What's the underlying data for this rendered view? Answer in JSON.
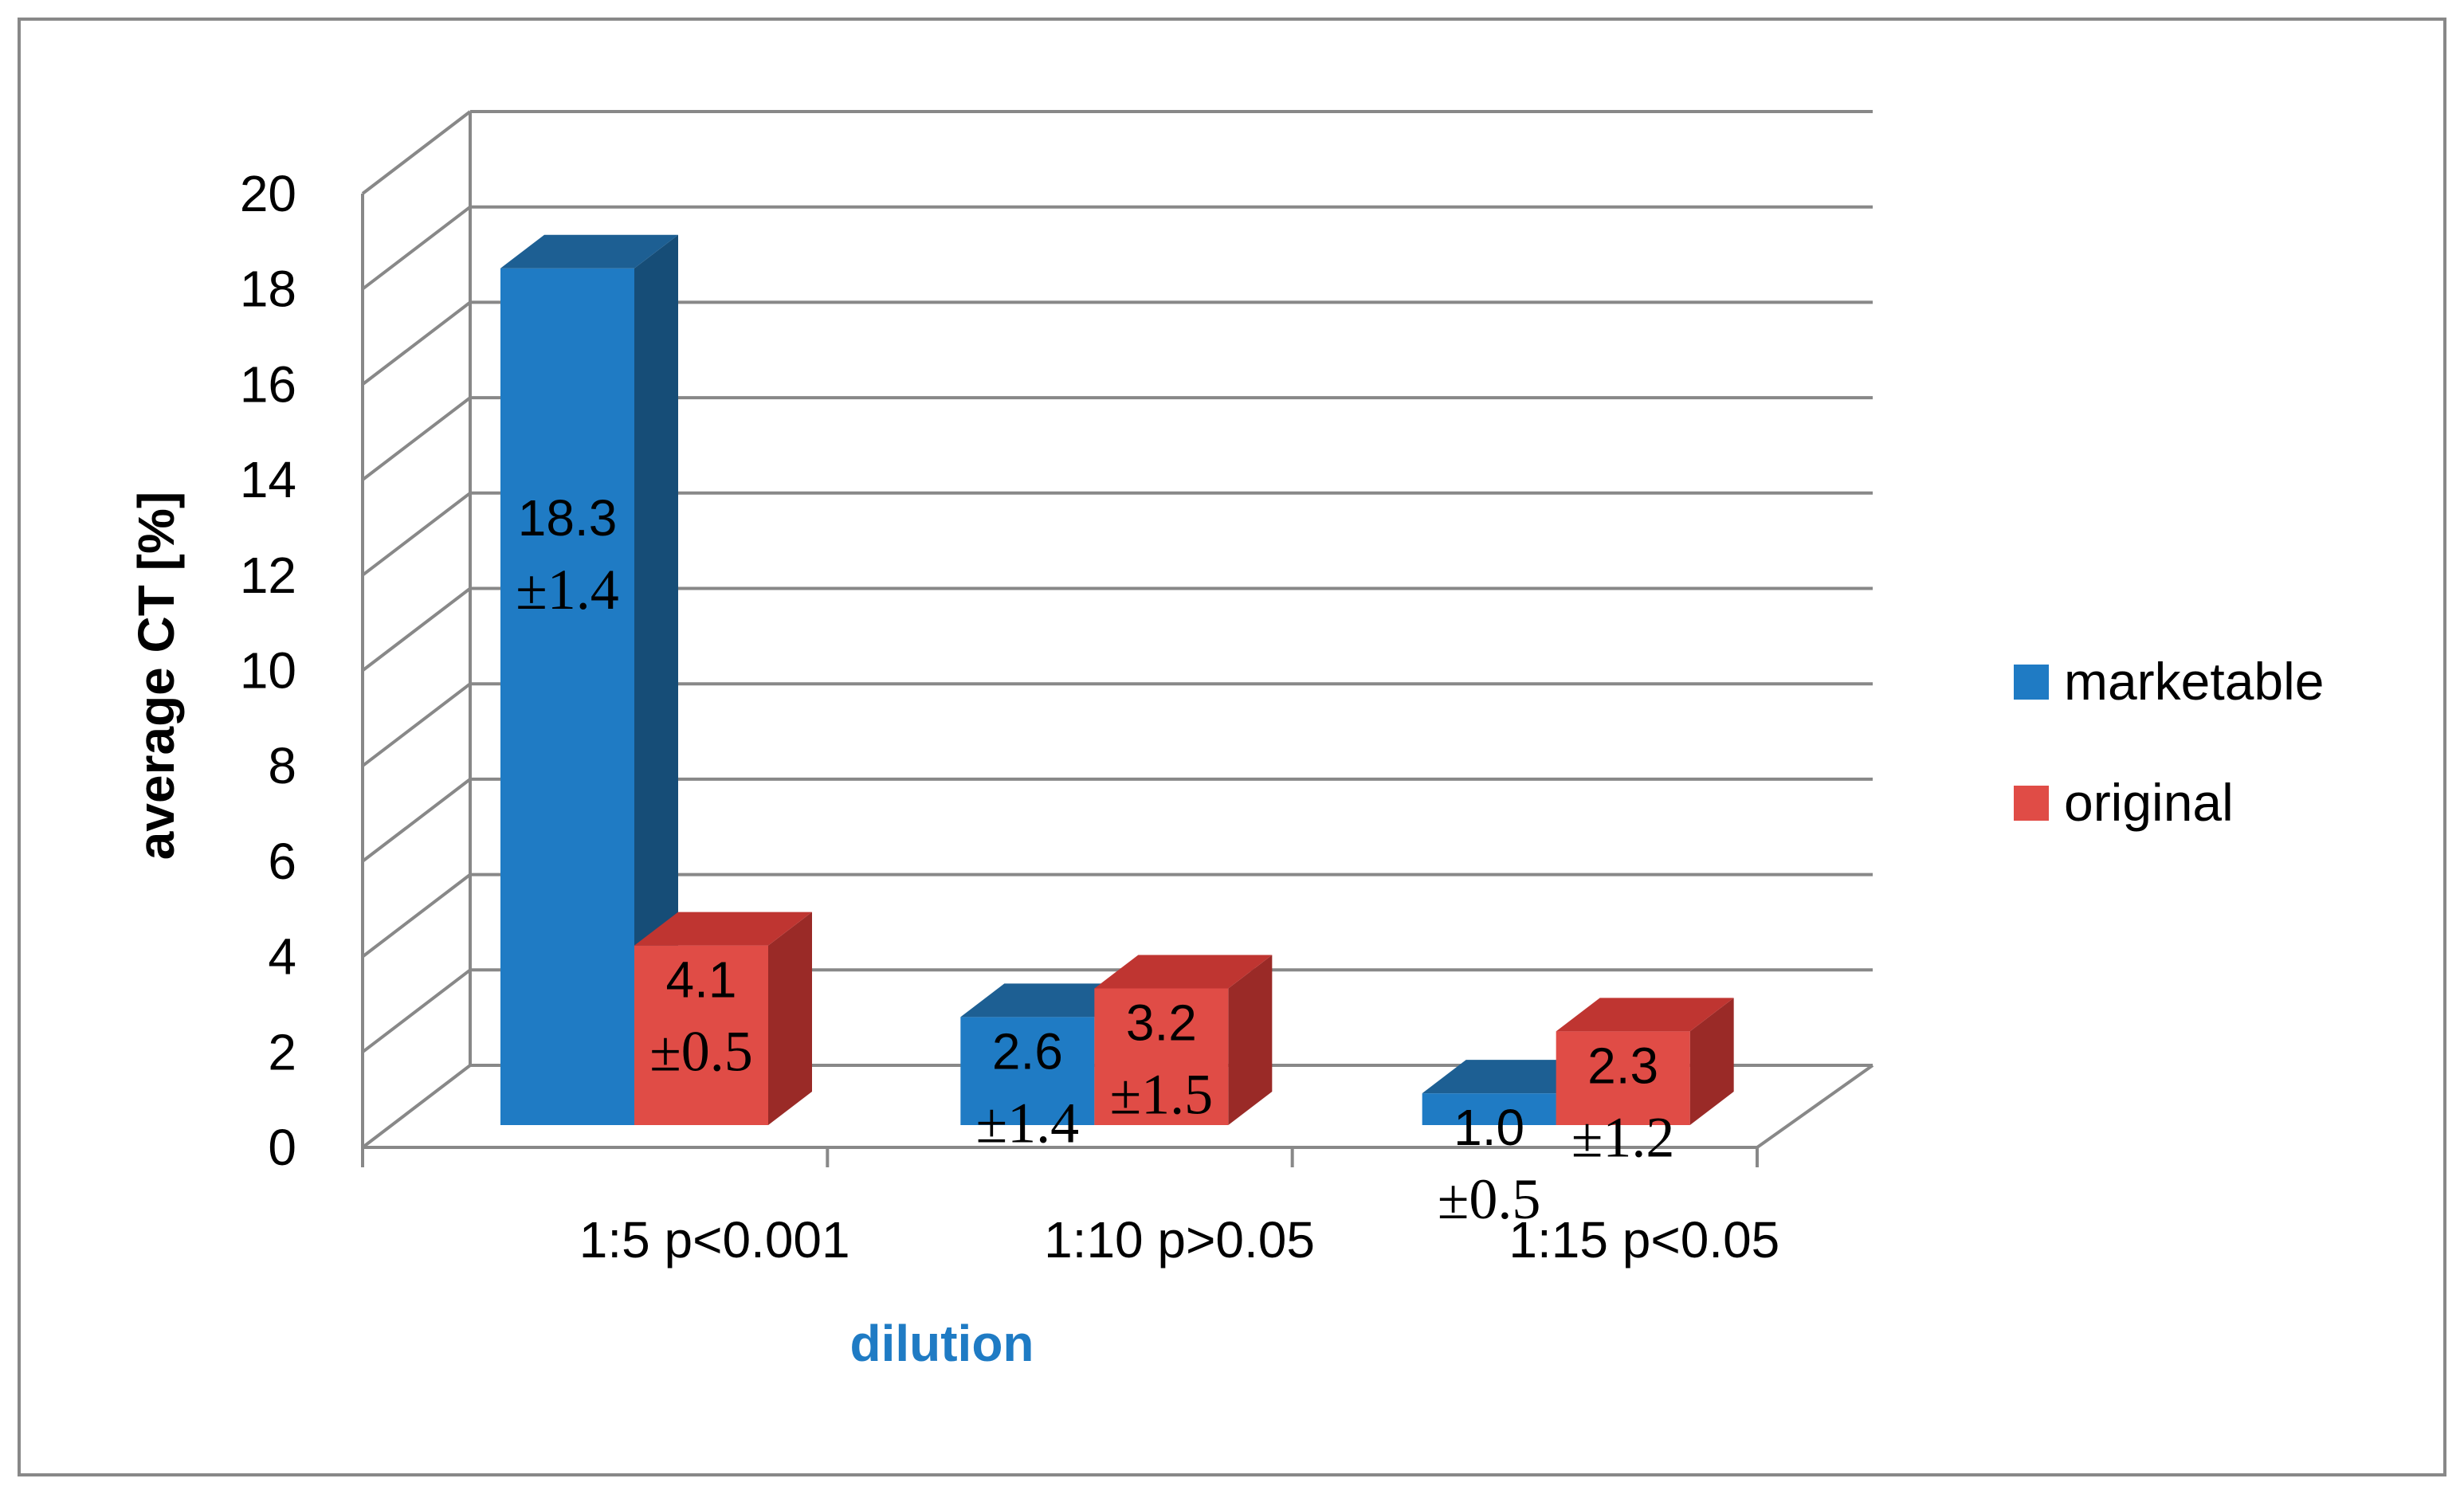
{
  "chart_data": {
    "type": "bar",
    "categories": [
      "1:5 p<0.001",
      "1:10 p>0.05",
      "1:15 p<0.05"
    ],
    "series": [
      {
        "name": "marketable",
        "values": [
          18.3,
          2.6,
          1.0
        ],
        "errors": [
          1.4,
          1.4,
          0.5
        ],
        "color": "#1f7bc4",
        "top_color": "#1d5f93",
        "side_color": "#164d77"
      },
      {
        "name": "original",
        "values": [
          4.1,
          3.2,
          2.3
        ],
        "errors": [
          0.5,
          1.5,
          1.2
        ],
        "color": "#e04c46",
        "top_color": "#bf3531",
        "side_color": "#9a2a27"
      }
    ],
    "value_labels": [
      [
        "18.3",
        "2.6",
        "1.0"
      ],
      [
        "4.1",
        "3.2",
        "2.3"
      ]
    ],
    "error_labels": [
      [
        "±1.4",
        "±1.4",
        "±0.5"
      ],
      [
        "±0.5",
        "±1.5",
        "±1.2"
      ]
    ],
    "yticks": [
      "0",
      "2",
      "4",
      "6",
      "8",
      "10",
      "12",
      "14",
      "16",
      "18",
      "20"
    ],
    "xlabel": "dilution",
    "ylabel": "average CT [%]",
    "ylim": [
      0,
      20
    ],
    "grid": true,
    "legend_position": "right",
    "style": "3d-clustered-column"
  }
}
